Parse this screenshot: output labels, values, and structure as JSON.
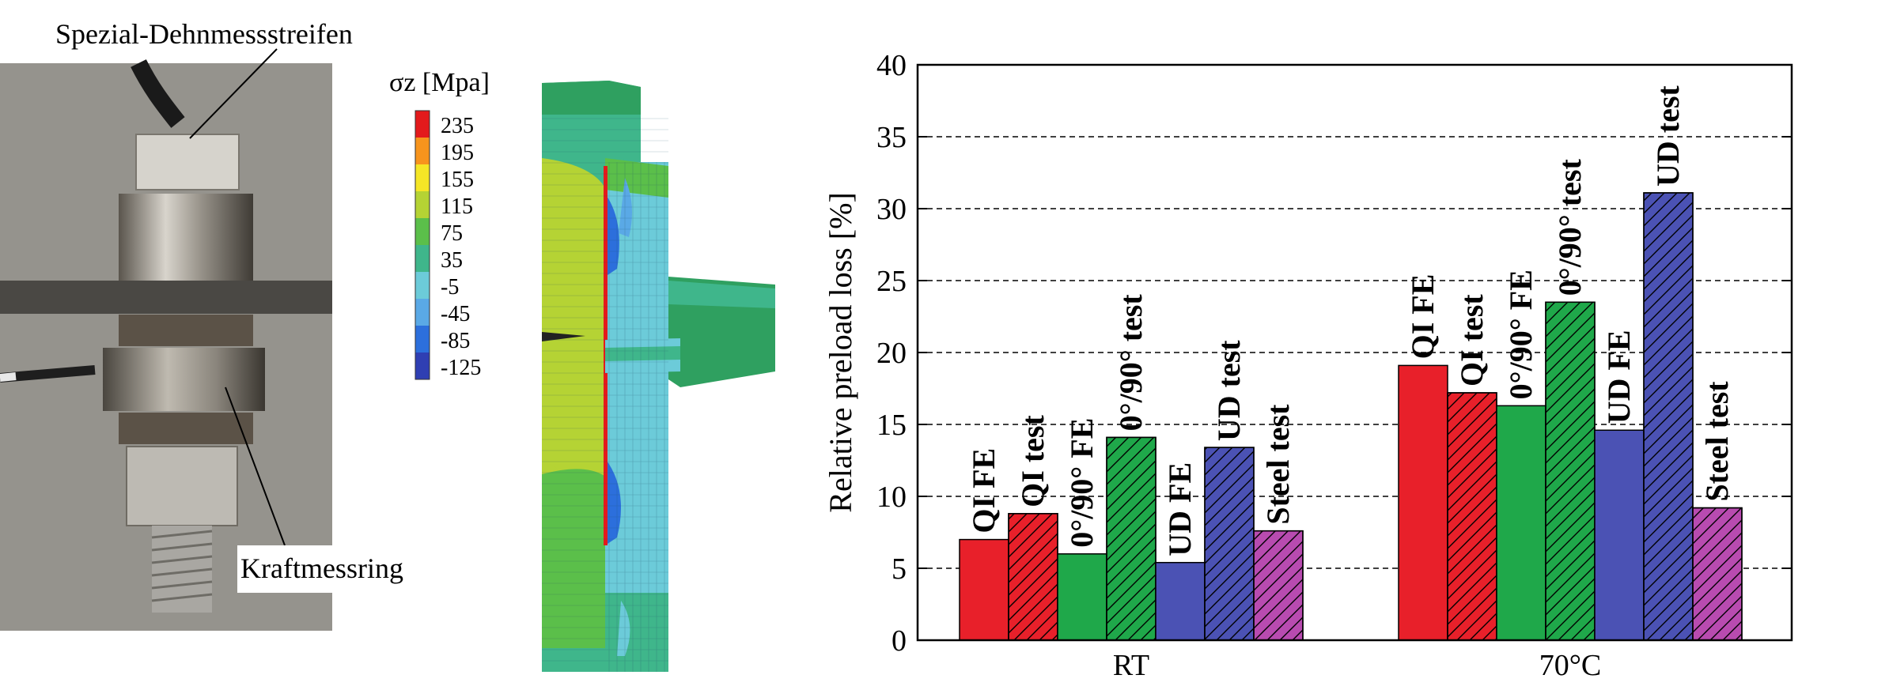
{
  "photo": {
    "label_top": "Spezial-Dehnmessstreifen",
    "label_bottom": "Kraftmessring"
  },
  "fe": {
    "legend_title": "σz [Mpa]",
    "legend_values": [
      "235",
      "195",
      "155",
      "115",
      "75",
      "35",
      "-5",
      "-45",
      "-85",
      "-125"
    ],
    "legend_colors": [
      "#e31a1c",
      "#f7941d",
      "#f5e626",
      "#b5d334",
      "#5bbf4a",
      "#3fb68b",
      "#6ccbd9",
      "#5aa9e6",
      "#2c6fdc",
      "#2f3fb3"
    ]
  },
  "chart_data": {
    "type": "bar",
    "ylabel": "Relative preload loss [%]",
    "ylim": [
      0,
      40
    ],
    "yticks": [
      0,
      5,
      10,
      15,
      20,
      25,
      30,
      35,
      40
    ],
    "grid": "horizontal dashed",
    "categories": [
      "RT",
      "70°C"
    ],
    "bar_labels": [
      "QI FE",
      "QI test",
      "0°/90° FE",
      "0°/90° test",
      "UD FE",
      "UD test",
      "Steel test"
    ],
    "bar_colors": [
      "#e8202a",
      "#e8202a",
      "#1fa84a",
      "#1fa84a",
      "#4b52b4",
      "#4b52b4",
      "#b84bb0"
    ],
    "bar_hatched": [
      false,
      true,
      false,
      true,
      false,
      true,
      true
    ],
    "values": {
      "RT": [
        7.0,
        8.8,
        6.0,
        14.1,
        5.4,
        13.4,
        7.6
      ],
      "70°C": [
        19.1,
        17.2,
        16.3,
        23.5,
        14.6,
        31.1,
        9.2
      ]
    }
  }
}
